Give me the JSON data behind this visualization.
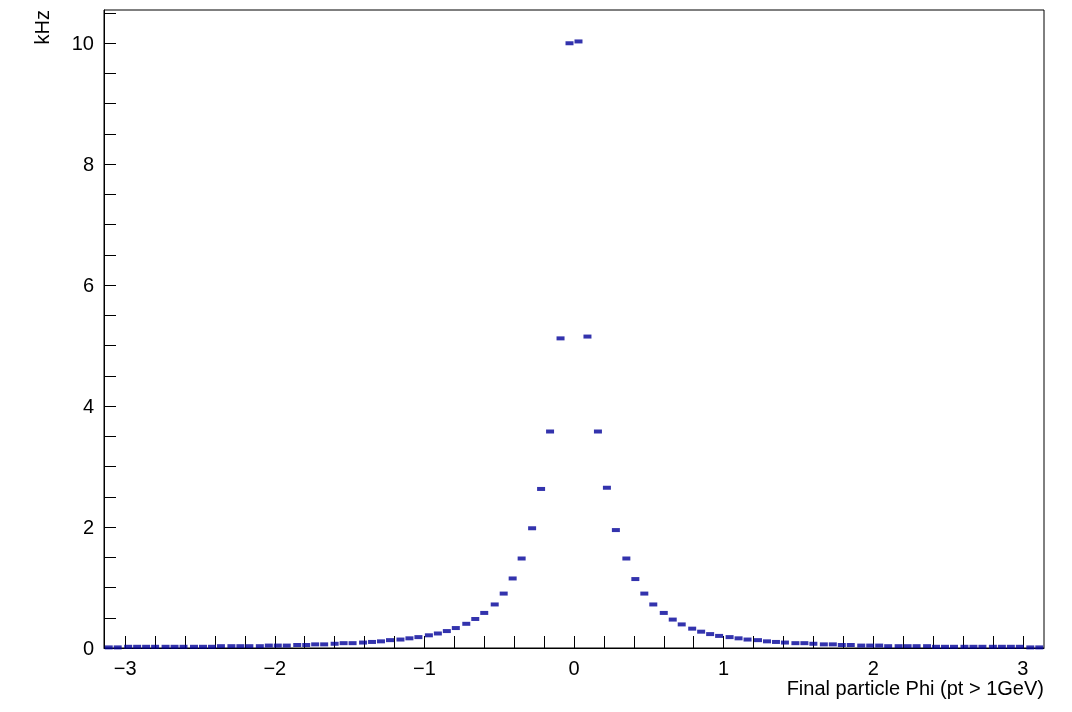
{
  "chart_data": {
    "type": "scatter",
    "xlabel": "Final particle Phi (pt > 1GeV)",
    "ylabel": "kHz",
    "color": "#000099",
    "marker": "square",
    "grid": false,
    "x": [
      -3.11,
      -3.05,
      -2.98,
      -2.92,
      -2.86,
      -2.8,
      -2.73,
      -2.67,
      -2.61,
      -2.54,
      -2.48,
      -2.42,
      -2.36,
      -2.29,
      -2.23,
      -2.17,
      -2.1,
      -2.04,
      -1.98,
      -1.92,
      -1.85,
      -1.79,
      -1.73,
      -1.67,
      -1.6,
      -1.54,
      -1.48,
      -1.41,
      -1.35,
      -1.29,
      -1.23,
      -1.16,
      -1.1,
      -1.04,
      -0.97,
      -0.91,
      -0.85,
      -0.79,
      -0.72,
      -0.66,
      -0.6,
      -0.53,
      -0.47,
      -0.41,
      -0.35,
      -0.28,
      -0.22,
      -0.16,
      -0.09,
      -0.03,
      0.03,
      0.09,
      0.16,
      0.22,
      0.28,
      0.35,
      0.41,
      0.47,
      0.53,
      0.6,
      0.66,
      0.72,
      0.79,
      0.85,
      0.91,
      0.97,
      1.04,
      1.1,
      1.16,
      1.23,
      1.29,
      1.35,
      1.41,
      1.48,
      1.54,
      1.6,
      1.67,
      1.73,
      1.79,
      1.85,
      1.92,
      1.98,
      2.04,
      2.1,
      2.17,
      2.23,
      2.29,
      2.36,
      2.42,
      2.48,
      2.54,
      2.61,
      2.67,
      2.73,
      2.8,
      2.86,
      2.92,
      2.98,
      3.05,
      3.11
    ],
    "values": [
      0.01,
      0.01,
      0.02,
      0.02,
      0.02,
      0.02,
      0.02,
      0.02,
      0.02,
      0.02,
      0.02,
      0.02,
      0.03,
      0.03,
      0.03,
      0.03,
      0.03,
      0.04,
      0.04,
      0.04,
      0.05,
      0.05,
      0.06,
      0.06,
      0.07,
      0.08,
      0.08,
      0.09,
      0.1,
      0.11,
      0.13,
      0.14,
      0.16,
      0.18,
      0.21,
      0.24,
      0.28,
      0.33,
      0.4,
      0.48,
      0.58,
      0.72,
      0.9,
      1.15,
      1.48,
      1.98,
      2.63,
      3.58,
      5.12,
      10.0,
      10.03,
      5.15,
      3.58,
      2.65,
      1.95,
      1.48,
      1.14,
      0.9,
      0.72,
      0.58,
      0.47,
      0.39,
      0.32,
      0.27,
      0.23,
      0.2,
      0.18,
      0.16,
      0.14,
      0.13,
      0.11,
      0.1,
      0.09,
      0.08,
      0.08,
      0.07,
      0.06,
      0.06,
      0.05,
      0.05,
      0.04,
      0.04,
      0.04,
      0.03,
      0.03,
      0.03,
      0.03,
      0.03,
      0.02,
      0.02,
      0.02,
      0.02,
      0.02,
      0.02,
      0.02,
      0.02,
      0.02,
      0.02,
      0.01,
      0.01
    ],
    "xlim": [
      -3.1416,
      3.1416
    ],
    "xticks": [
      {
        "value": -3,
        "label": "−3"
      },
      {
        "value": -2.8,
        "label": null
      },
      {
        "value": -2.6,
        "label": null
      },
      {
        "value": -2.4,
        "label": null
      },
      {
        "value": -2.2,
        "label": null
      },
      {
        "value": -2,
        "label": "−2"
      },
      {
        "value": -1.8,
        "label": null
      },
      {
        "value": -1.6,
        "label": null
      },
      {
        "value": -1.4,
        "label": null
      },
      {
        "value": -1.2,
        "label": null
      },
      {
        "value": -1,
        "label": "−1"
      },
      {
        "value": -0.8,
        "label": null
      },
      {
        "value": -0.6,
        "label": null
      },
      {
        "value": -0.4,
        "label": null
      },
      {
        "value": -0.2,
        "label": null
      },
      0,
      {
        "value": 0.2,
        "label": null
      },
      {
        "value": 0.4,
        "label": null
      },
      {
        "value": 0.6,
        "label": null
      },
      {
        "value": 0.8,
        "label": null
      },
      1,
      {
        "value": 1.2,
        "label": null
      },
      {
        "value": 1.4,
        "label": null
      },
      {
        "value": 1.6,
        "label": null
      },
      {
        "value": 1.8,
        "label": null
      },
      2,
      {
        "value": 2.2,
        "label": null
      },
      {
        "value": 2.4,
        "label": null
      },
      {
        "value": 2.6,
        "label": null
      },
      {
        "value": 2.8,
        "label": null
      },
      3
    ],
    "ylim": [
      0,
      10.55
    ],
    "yticks": [
      0,
      {
        "value": 0.5,
        "label": null
      },
      {
        "value": 1,
        "label": null
      },
      {
        "value": 1.5,
        "label": null
      },
      2,
      {
        "value": 2.5,
        "label": null
      },
      {
        "value": 3,
        "label": null
      },
      {
        "value": 3.5,
        "label": null
      },
      4,
      {
        "value": 4.5,
        "label": null
      },
      {
        "value": 5,
        "label": null
      },
      {
        "value": 5.5,
        "label": null
      },
      6,
      {
        "value": 6.5,
        "label": null
      },
      {
        "value": 7,
        "label": null
      },
      {
        "value": 7.5,
        "label": null
      },
      8,
      {
        "value": 8.5,
        "label": null
      },
      {
        "value": 9,
        "label": null
      },
      {
        "value": 9.5,
        "label": null
      },
      10,
      {
        "value": 10.5,
        "label": null
      }
    ]
  }
}
